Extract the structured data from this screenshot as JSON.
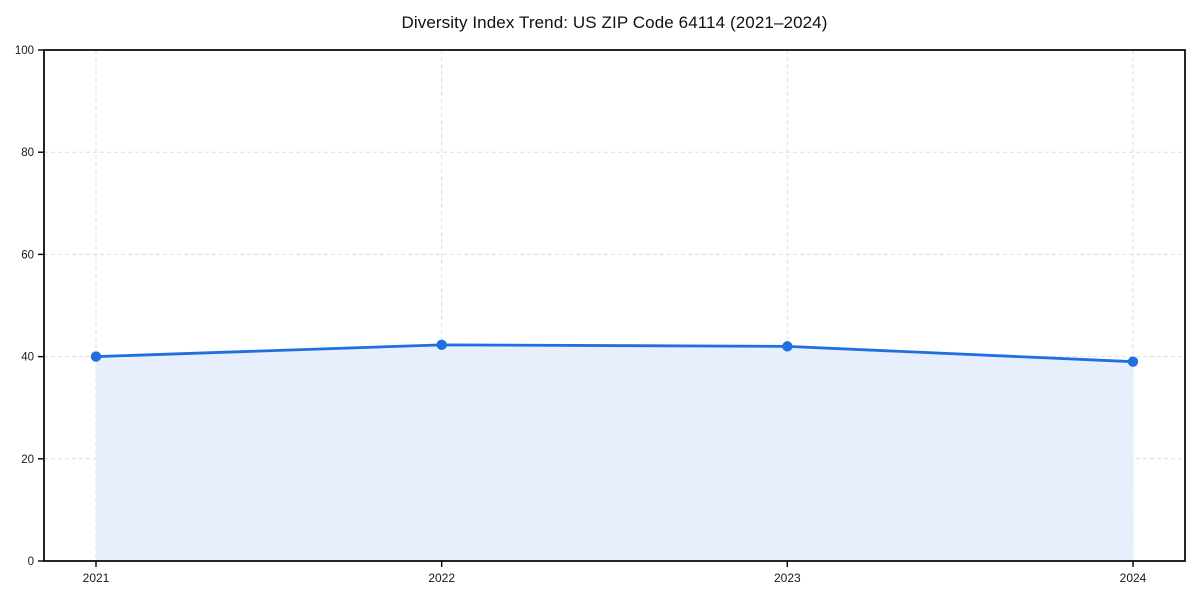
{
  "chart_data": {
    "type": "area",
    "title": "Diversity Index Trend: US ZIP Code 64114 (2021–2024)",
    "categories": [
      "2021",
      "2022",
      "2023",
      "2024"
    ],
    "series": [
      {
        "name": "Diversity Index",
        "values": [
          40,
          42.3,
          42,
          39
        ]
      }
    ],
    "xlabel": "",
    "ylabel": "",
    "ylim": [
      0,
      100
    ],
    "yticks": [
      0,
      20,
      40,
      60,
      80,
      100
    ],
    "grid": "dashed",
    "legend_position": "none",
    "colors": {
      "line": "#1f6fe0",
      "marker": "#1f6fe0",
      "fill": "#e7eefc",
      "grid": "#dedede",
      "axis": "#000000",
      "tick_label": "#1a1a1a",
      "title": "#111111",
      "background": "#ffffff"
    }
  }
}
